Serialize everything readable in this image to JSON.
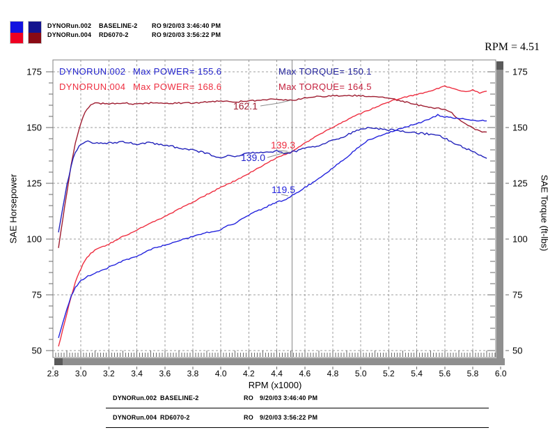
{
  "window": {
    "cursor_rpm_label": "RPM = 4.51"
  },
  "header_legend": {
    "swatches": [
      {
        "top_color": "#1212e0",
        "bottom_color": "#ee0022"
      },
      {
        "top_color": "#14148e",
        "bottom_color": "#8a0a14"
      }
    ],
    "rows": [
      {
        "file": "DYNORun.002",
        "desc": "BASELINE-2",
        "ro": "RO",
        "time": "9/20/03 3:46:40 PM"
      },
      {
        "file": "DYNORun.004",
        "desc": "RD6070-2",
        "ro": "RO",
        "time": "9/20/03 3:56:22 PM"
      }
    ]
  },
  "footer_legend": {
    "rows": [
      {
        "file": "DYNORun.002",
        "desc": "BASELINE-2",
        "ro": "RO",
        "time": "9/20/03 3:46:40 PM"
      },
      {
        "file": "DYNORun.004",
        "desc": "RD6070-2",
        "ro": "RO",
        "time": "9/20/03 3:56:22 PM"
      }
    ]
  },
  "chart_data": {
    "type": "line",
    "title": "",
    "xlabel": "RPM (x1000)",
    "ylabel_left": "SAE Horsepower",
    "ylabel_right": "SAE Torque (ft-lbs)",
    "xlim": [
      2.8,
      6.0
    ],
    "ylim": [
      47,
      180
    ],
    "x_ticks": [
      2.8,
      3.0,
      3.2,
      3.4,
      3.6,
      3.8,
      4.0,
      4.2,
      4.4,
      4.6,
      4.8,
      5.0,
      5.2,
      5.4,
      5.6,
      5.8,
      6.0
    ],
    "y_ticks": [
      50,
      75,
      100,
      125,
      150,
      175
    ],
    "grid": "dashed-gray-major",
    "annotations": [
      {
        "run": "DYNORUN.002",
        "run_color": "#2222cc",
        "power": "Max POWER= 155.6",
        "power_color": "#2222cc",
        "torque": "Max TORQUE= 150.1",
        "torque_color": "#22229a"
      },
      {
        "run": "DYNORUN.004",
        "run_color": "#ee2e40",
        "power": "Max POWER= 168.6",
        "power_color": "#ee2e40",
        "torque": "Max TORQUE= 164.5",
        "torque_color": "#c41f3c"
      }
    ],
    "cursor": {
      "rpm": 4.51,
      "readouts": [
        {
          "text": "162.1",
          "value": 162.1,
          "color": "#9e1c30",
          "series": "DYNORun.004 torque"
        },
        {
          "text": "139.3",
          "value": 139.3,
          "color": "#ee2e40",
          "series": "DYNORun.004 power"
        },
        {
          "text": "139.0",
          "value": 139.0,
          "color": "#2222cc",
          "series": "DYNORun.002 torque"
        },
        {
          "text": "119.5",
          "value": 119.5,
          "color": "#2323dd",
          "series": "DYNORun.002 power"
        }
      ]
    },
    "series": [
      {
        "name": "DYNORun.004 SAE Torque",
        "run": "DYNORun.004",
        "axis": "torque",
        "color": "#9e1c30",
        "wiggle": 1.0,
        "points": [
          [
            2.84,
            96
          ],
          [
            2.87,
            109
          ],
          [
            2.9,
            121
          ],
          [
            2.93,
            133
          ],
          [
            2.96,
            143
          ],
          [
            3.0,
            152
          ],
          [
            3.03,
            157
          ],
          [
            3.07,
            160
          ],
          [
            3.1,
            161
          ],
          [
            3.2,
            160.6
          ],
          [
            3.3,
            161.0
          ],
          [
            3.4,
            160.5
          ],
          [
            3.5,
            161.0
          ],
          [
            3.6,
            160.6
          ],
          [
            3.7,
            161.0
          ],
          [
            3.8,
            161.0
          ],
          [
            3.9,
            161.4
          ],
          [
            4.0,
            161.8
          ],
          [
            4.1,
            161.5
          ],
          [
            4.2,
            161.9
          ],
          [
            4.3,
            162.3
          ],
          [
            4.4,
            162.8
          ],
          [
            4.51,
            162.1
          ],
          [
            4.6,
            163.3
          ],
          [
            4.7,
            163.9
          ],
          [
            4.8,
            164.2
          ],
          [
            4.9,
            164.5
          ],
          [
            5.0,
            164.2
          ],
          [
            5.1,
            163.8
          ],
          [
            5.2,
            163.2
          ],
          [
            5.3,
            161.8
          ],
          [
            5.4,
            160.2
          ],
          [
            5.5,
            159.0
          ],
          [
            5.6,
            158.2
          ],
          [
            5.65,
            156.5
          ],
          [
            5.7,
            153.5
          ],
          [
            5.75,
            151.5
          ],
          [
            5.8,
            149.8
          ],
          [
            5.85,
            148.4
          ],
          [
            5.9,
            148.0
          ]
        ]
      },
      {
        "name": "DYNORun.004 SAE Power",
        "run": "DYNORun.004",
        "axis": "power",
        "color": "#ee2e40",
        "wiggle": 0.8,
        "points": [
          [
            2.84,
            51.9
          ],
          [
            2.87,
            59.5
          ],
          [
            2.9,
            66.8
          ],
          [
            2.93,
            74.2
          ],
          [
            2.96,
            80.6
          ],
          [
            3.0,
            86.8
          ],
          [
            3.03,
            90.6
          ],
          [
            3.07,
            93.5
          ],
          [
            3.1,
            95.1
          ],
          [
            3.2,
            97.8
          ],
          [
            3.3,
            101.1
          ],
          [
            3.4,
            104.0
          ],
          [
            3.5,
            107.3
          ],
          [
            3.6,
            110.1
          ],
          [
            3.7,
            113.4
          ],
          [
            3.8,
            116.6
          ],
          [
            3.9,
            120.0
          ],
          [
            4.0,
            123.2
          ],
          [
            4.1,
            126.1
          ],
          [
            4.2,
            129.5
          ],
          [
            4.3,
            133.0
          ],
          [
            4.4,
            136.5
          ],
          [
            4.51,
            139.3
          ],
          [
            4.6,
            143.0
          ],
          [
            4.7,
            146.7
          ],
          [
            4.8,
            150.1
          ],
          [
            4.9,
            153.5
          ],
          [
            5.0,
            156.3
          ],
          [
            5.1,
            159.0
          ],
          [
            5.2,
            161.6
          ],
          [
            5.3,
            163.4
          ],
          [
            5.4,
            164.8
          ],
          [
            5.5,
            166.5
          ],
          [
            5.6,
            168.6
          ],
          [
            5.65,
            167.7
          ],
          [
            5.7,
            166.6
          ],
          [
            5.75,
            166.0
          ],
          [
            5.8,
            166.9
          ],
          [
            5.85,
            165.4
          ],
          [
            5.9,
            166.3
          ]
        ]
      },
      {
        "name": "DYNORun.002 SAE Torque",
        "run": "DYNORun.002",
        "axis": "torque",
        "color": "#2222bb",
        "wiggle": 1.4,
        "points": [
          [
            2.84,
            103
          ],
          [
            2.87,
            114
          ],
          [
            2.9,
            124
          ],
          [
            2.93,
            133
          ],
          [
            2.96,
            139
          ],
          [
            3.0,
            142.5
          ],
          [
            3.05,
            143.6
          ],
          [
            3.1,
            143.2
          ],
          [
            3.2,
            143.0
          ],
          [
            3.3,
            143.5
          ],
          [
            3.4,
            142.6
          ],
          [
            3.5,
            143.2
          ],
          [
            3.6,
            142.0
          ],
          [
            3.7,
            141.0
          ],
          [
            3.8,
            139.8
          ],
          [
            3.9,
            138.5
          ],
          [
            3.95,
            137.0
          ],
          [
            4.0,
            136.6
          ],
          [
            4.05,
            137.6
          ],
          [
            4.1,
            136.9
          ],
          [
            4.15,
            137.9
          ],
          [
            4.2,
            138.5
          ],
          [
            4.3,
            138.9
          ],
          [
            4.4,
            139.3
          ],
          [
            4.45,
            138.6
          ],
          [
            4.51,
            139.0
          ],
          [
            4.6,
            140.6
          ],
          [
            4.7,
            142.0
          ],
          [
            4.8,
            144.2
          ],
          [
            4.9,
            146.6
          ],
          [
            5.0,
            149.3
          ],
          [
            5.05,
            150.1
          ],
          [
            5.1,
            149.6
          ],
          [
            5.2,
            149.0
          ],
          [
            5.3,
            148.4
          ],
          [
            5.4,
            147.6
          ],
          [
            5.5,
            147.0
          ],
          [
            5.55,
            146.9
          ],
          [
            5.6,
            145.2
          ],
          [
            5.7,
            142.0
          ],
          [
            5.8,
            139.2
          ],
          [
            5.9,
            136.2
          ]
        ]
      },
      {
        "name": "DYNORun.002 SAE Power",
        "run": "DYNORun.002",
        "axis": "power",
        "color": "#2323dd",
        "wiggle": 0.9,
        "points": [
          [
            2.84,
            55.7
          ],
          [
            2.87,
            62.3
          ],
          [
            2.9,
            68.5
          ],
          [
            2.93,
            74.2
          ],
          [
            2.96,
            78.3
          ],
          [
            3.0,
            81.4
          ],
          [
            3.05,
            83.4
          ],
          [
            3.1,
            84.6
          ],
          [
            3.2,
            87.3
          ],
          [
            3.3,
            90.2
          ],
          [
            3.4,
            92.3
          ],
          [
            3.5,
            95.4
          ],
          [
            3.6,
            97.3
          ],
          [
            3.7,
            99.3
          ],
          [
            3.8,
            101.1
          ],
          [
            3.9,
            102.9
          ],
          [
            3.95,
            103.1
          ],
          [
            4.0,
            104.1
          ],
          [
            4.05,
            106.1
          ],
          [
            4.1,
            106.9
          ],
          [
            4.15,
            108.9
          ],
          [
            4.2,
            110.8
          ],
          [
            4.3,
            113.7
          ],
          [
            4.4,
            116.7
          ],
          [
            4.45,
            117.4
          ],
          [
            4.51,
            119.5
          ],
          [
            4.6,
            123.1
          ],
          [
            4.7,
            127.1
          ],
          [
            4.8,
            131.9
          ],
          [
            4.9,
            136.8
          ],
          [
            5.0,
            142.1
          ],
          [
            5.05,
            144.3
          ],
          [
            5.1,
            145.3
          ],
          [
            5.2,
            147.7
          ],
          [
            5.3,
            149.9
          ],
          [
            5.4,
            151.7
          ],
          [
            5.5,
            154.0
          ],
          [
            5.55,
            155.6
          ],
          [
            5.6,
            154.8
          ],
          [
            5.7,
            154.1
          ],
          [
            5.8,
            153.3
          ],
          [
            5.9,
            153.0
          ]
        ]
      }
    ]
  }
}
